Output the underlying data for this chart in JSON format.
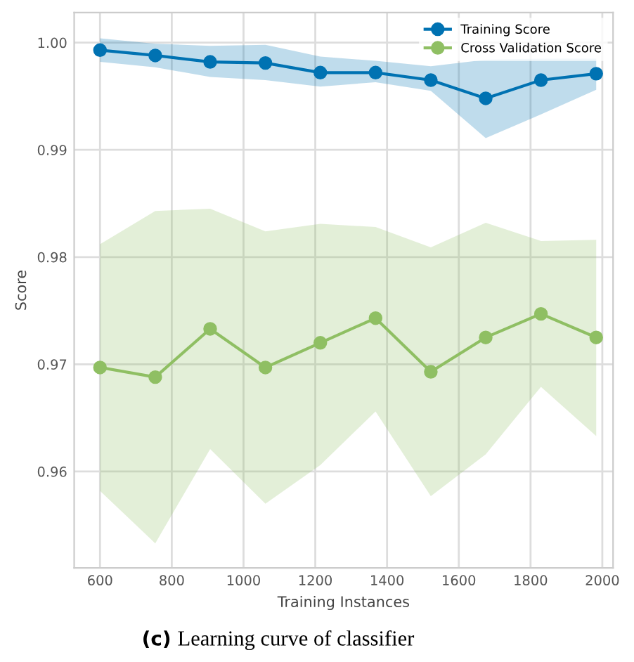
{
  "chart_data": {
    "type": "line",
    "xlabel": "Training Instances",
    "ylabel": "Score",
    "x": [
      600,
      754,
      907,
      1061,
      1214,
      1368,
      1522,
      1675,
      1829,
      1983
    ],
    "series": [
      {
        "name": "Training Score",
        "color": "#0072b2",
        "values": [
          0.9993,
          0.9988,
          0.9982,
          0.9981,
          0.9972,
          0.9972,
          0.9965,
          0.9948,
          0.9965,
          0.9971
        ],
        "lower": [
          0.9982,
          0.9977,
          0.9968,
          0.9965,
          0.9959,
          0.9963,
          0.9955,
          0.9911,
          0.9933,
          0.9956
        ],
        "upper": [
          1.0004,
          0.9999,
          0.9997,
          0.9998,
          0.9987,
          0.9983,
          0.9978,
          0.9984,
          0.9985,
          0.9985
        ]
      },
      {
        "name": "Cross Validation Score",
        "color": "#8fbf63",
        "values": [
          0.9697,
          0.9688,
          0.9733,
          0.9697,
          0.972,
          0.9743,
          0.9693,
          0.9725,
          0.9747,
          0.9725
        ],
        "lower": [
          0.9582,
          0.9533,
          0.9621,
          0.957,
          0.9606,
          0.9656,
          0.9577,
          0.9616,
          0.9679,
          0.9633
        ],
        "upper": [
          0.9812,
          0.9843,
          0.9845,
          0.9824,
          0.9831,
          0.9828,
          0.9809,
          0.9832,
          0.9815,
          0.9816
        ]
      }
    ],
    "xlim": [
      528,
      2030
    ],
    "ylim": [
      0.951,
      1.0028
    ],
    "xticks": [
      600,
      800,
      1000,
      1200,
      1400,
      1600,
      1800,
      2000
    ],
    "yticks": [
      {
        "value": 0.96,
        "label": "0.96"
      },
      {
        "value": 0.97,
        "label": "0.97"
      },
      {
        "value": 0.98,
        "label": "0.98"
      },
      {
        "value": 0.99,
        "label": "0.99"
      },
      {
        "value": 1.0,
        "label": "1.00"
      }
    ],
    "grid": true,
    "legend": "top right",
    "marker": "circle",
    "line_style": "solid",
    "annotations": [
      "(c)",
      "Learning curve of classifier"
    ]
  }
}
